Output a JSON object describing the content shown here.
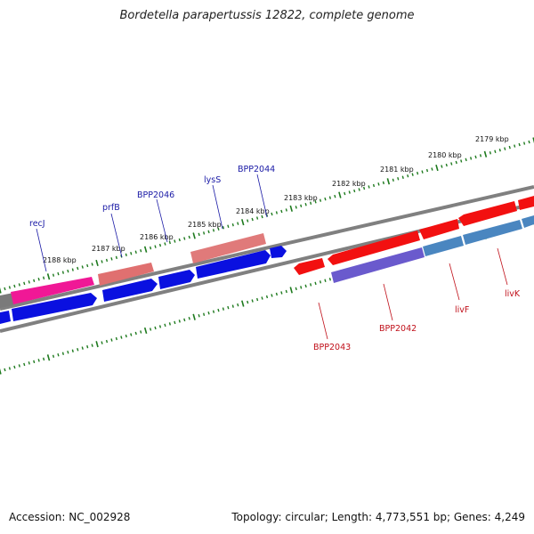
{
  "title": "Bordetella parapertussis 12822, complete genome",
  "accession": "Accession: NC_002928",
  "stats": "Topology: circular; Length: 4,773,551 bp; Genes: 4,249",
  "colors": {
    "backbone": "#808080",
    "tick": "#1e7a1e",
    "forward_cds": "#0a10e0",
    "reverse_cds": "#f21010",
    "pink_feature": "#f01896",
    "salmon_feature": "#e87878",
    "steelblue_feature": "#4a86c0",
    "purple_feature": "#6a5acd",
    "label_forward": "#1a1aa6",
    "label_reverse": "#c0101a"
  },
  "tick_labels": [
    "2179 kbp",
    "2180 kbp",
    "2181 kbp",
    "2182 kbp",
    "2183 kbp",
    "2184 kbp",
    "2185 kbp",
    "2186 kbp",
    "2187 kbp",
    "2188 kbp"
  ],
  "genes_top": [
    "recJ",
    "prfB",
    "BPP2046",
    "lysS",
    "BPP2044"
  ],
  "genes_bottom": [
    "BPP2043",
    "BPP2042",
    "livF",
    "livK"
  ]
}
